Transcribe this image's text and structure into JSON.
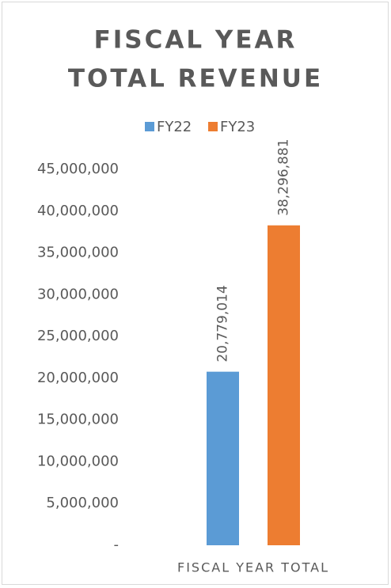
{
  "chart_data": {
    "type": "bar",
    "title": [
      "FISCAL YEAR",
      "TOTAL REVENUE"
    ],
    "categories": [
      "FISCAL YEAR TOTAL"
    ],
    "series": [
      {
        "name": "FY22",
        "color": "#5b9bd5",
        "values": [
          20779014
        ],
        "value_labels": [
          "20,779,014"
        ]
      },
      {
        "name": "FY23",
        "color": "#ed7d31",
        "values": [
          38296881
        ],
        "value_labels": [
          "38,296,881"
        ]
      }
    ],
    "ylim": [
      0,
      45000000
    ],
    "yticks": [
      {
        "value": 0,
        "label": "-"
      },
      {
        "value": 5000000,
        "label": "5,000,000"
      },
      {
        "value": 10000000,
        "label": "10,000,000"
      },
      {
        "value": 15000000,
        "label": "15,000,000"
      },
      {
        "value": 20000000,
        "label": "20,000,000"
      },
      {
        "value": 25000000,
        "label": "25,000,000"
      },
      {
        "value": 30000000,
        "label": "30,000,000"
      },
      {
        "value": 35000000,
        "label": "35,000,000"
      },
      {
        "value": 40000000,
        "label": "40,000,000"
      },
      {
        "value": 45000000,
        "label": "45,000,000"
      }
    ],
    "grid": false,
    "legend": "top"
  }
}
